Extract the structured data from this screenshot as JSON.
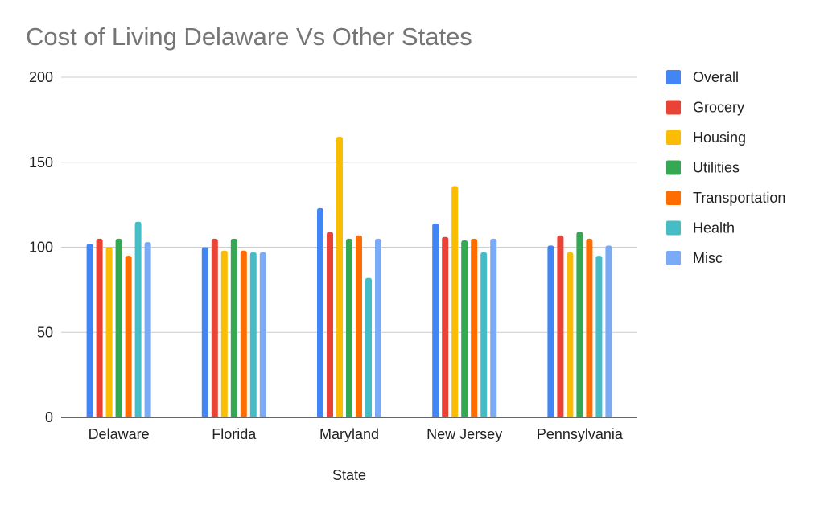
{
  "chart_data": {
    "type": "bar",
    "title": "Cost of Living Delaware Vs Other States",
    "xlabel": "State",
    "ylabel": "",
    "ylim": [
      0,
      200
    ],
    "yticks": [
      0,
      50,
      100,
      150,
      200
    ],
    "grid": true,
    "legend_position": "right",
    "categories": [
      "Delaware",
      "Florida",
      "Maryland",
      "New Jersey",
      "Pennsylvania"
    ],
    "series": [
      {
        "name": "Overall",
        "color": "#4285f4",
        "values": [
          102,
          100,
          123,
          114,
          101
        ]
      },
      {
        "name": "Grocery",
        "color": "#ea4335",
        "values": [
          105,
          105,
          109,
          106,
          107
        ]
      },
      {
        "name": "Housing",
        "color": "#fbbc04",
        "values": [
          100,
          98,
          165,
          136,
          97
        ]
      },
      {
        "name": "Utilities",
        "color": "#34a853",
        "values": [
          105,
          105,
          105,
          104,
          109
        ]
      },
      {
        "name": "Transportation",
        "color": "#ff6d01",
        "values": [
          95,
          98,
          107,
          105,
          105
        ]
      },
      {
        "name": "Health",
        "color": "#46bdc6",
        "values": [
          115,
          97,
          82,
          97,
          95
        ]
      },
      {
        "name": "Misc",
        "color": "#7baaf7",
        "values": [
          103,
          97,
          105,
          105,
          101
        ]
      }
    ]
  }
}
